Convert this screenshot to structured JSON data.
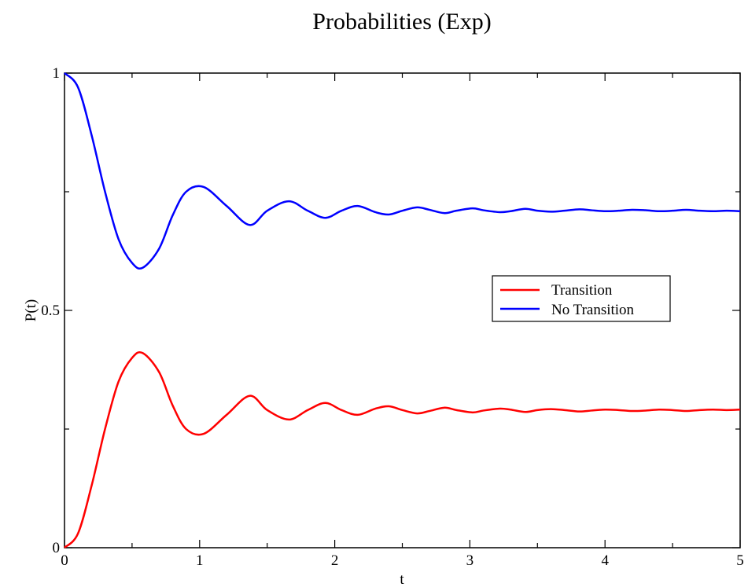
{
  "chart_data": {
    "type": "line",
    "title": "Probabilities (Exp)",
    "xlabel": "t",
    "ylabel": "P(t)",
    "xlim": [
      0,
      5
    ],
    "ylim": [
      0,
      1
    ],
    "x_ticks": [
      0,
      1,
      2,
      3,
      4,
      5
    ],
    "x_tick_labels": [
      "0",
      "1",
      "2",
      "3",
      "4",
      "5"
    ],
    "y_ticks": [
      0,
      0.5,
      1
    ],
    "y_tick_labels": [
      "0",
      "0.5",
      "1"
    ],
    "grid": false,
    "legend_position": "right",
    "series": [
      {
        "name": "Transition",
        "color": "#ff0000",
        "x": [
          0,
          0.1,
          0.2,
          0.3,
          0.4,
          0.5,
          0.58,
          0.7,
          0.8,
          0.9,
          1.03,
          1.2,
          1.37,
          1.5,
          1.66,
          1.8,
          1.93,
          2.05,
          2.17,
          2.3,
          2.4,
          2.5,
          2.61,
          2.7,
          2.81,
          2.9,
          3.02,
          3.1,
          3.22,
          3.3,
          3.41,
          3.5,
          3.6,
          3.7,
          3.81,
          3.9,
          4.0,
          4.1,
          4.2,
          4.3,
          4.4,
          4.5,
          4.6,
          4.7,
          4.8,
          4.9,
          5.0
        ],
        "y": [
          0,
          0.03,
          0.13,
          0.25,
          0.35,
          0.4,
          0.41,
          0.37,
          0.3,
          0.25,
          0.24,
          0.28,
          0.32,
          0.29,
          0.27,
          0.29,
          0.305,
          0.29,
          0.28,
          0.293,
          0.298,
          0.29,
          0.283,
          0.288,
          0.295,
          0.29,
          0.285,
          0.289,
          0.293,
          0.291,
          0.286,
          0.29,
          0.292,
          0.29,
          0.287,
          0.289,
          0.291,
          0.29,
          0.288,
          0.289,
          0.291,
          0.29,
          0.288,
          0.29,
          0.291,
          0.29,
          0.291
        ]
      },
      {
        "name": "No Transition",
        "color": "#0000ff",
        "x": [
          0,
          0.1,
          0.2,
          0.3,
          0.4,
          0.5,
          0.58,
          0.7,
          0.8,
          0.9,
          1.03,
          1.2,
          1.37,
          1.5,
          1.66,
          1.8,
          1.93,
          2.05,
          2.17,
          2.3,
          2.4,
          2.5,
          2.61,
          2.7,
          2.81,
          2.9,
          3.02,
          3.1,
          3.22,
          3.3,
          3.41,
          3.5,
          3.6,
          3.7,
          3.81,
          3.9,
          4.0,
          4.1,
          4.2,
          4.3,
          4.4,
          4.5,
          4.6,
          4.7,
          4.8,
          4.9,
          5.0
        ],
        "y": [
          1,
          0.97,
          0.87,
          0.75,
          0.65,
          0.6,
          0.59,
          0.63,
          0.7,
          0.75,
          0.76,
          0.72,
          0.68,
          0.71,
          0.73,
          0.71,
          0.695,
          0.71,
          0.72,
          0.707,
          0.702,
          0.71,
          0.717,
          0.712,
          0.705,
          0.71,
          0.715,
          0.711,
          0.707,
          0.709,
          0.714,
          0.71,
          0.708,
          0.71,
          0.713,
          0.711,
          0.709,
          0.71,
          0.712,
          0.711,
          0.709,
          0.71,
          0.712,
          0.71,
          0.709,
          0.71,
          0.709
        ]
      }
    ]
  }
}
